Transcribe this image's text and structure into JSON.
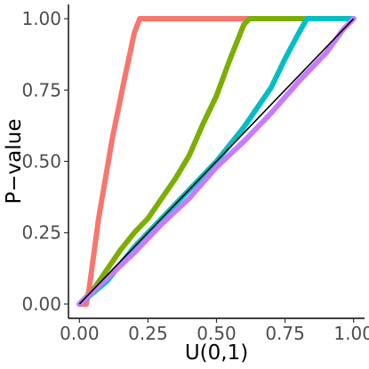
{
  "chart_data": {
    "type": "scatter",
    "title": "",
    "xlabel": "U(0,1)",
    "ylabel": "P−value",
    "xlim": [
      -0.04,
      1.04
    ],
    "ylim": [
      -0.05,
      1.05
    ],
    "xticks": [
      0.0,
      0.25,
      0.5,
      0.75,
      1.0
    ],
    "xtick_labels": [
      "0.00",
      "0.25",
      "0.50",
      "0.75",
      "1.00"
    ],
    "yticks": [
      0.0,
      0.25,
      0.5,
      0.75,
      1.0
    ],
    "ytick_labels": [
      "0.00",
      "0.25",
      "0.50",
      "0.75",
      "1.00"
    ],
    "grid": false,
    "legend": "none",
    "reference_line": {
      "from": [
        0,
        0
      ],
      "to": [
        1,
        1
      ],
      "color": "#000000"
    },
    "series": [
      {
        "color": "#F8766D",
        "points": [
          [
            0.0,
            0.0
          ],
          [
            0.025,
            0.0
          ],
          [
            0.035,
            0.05
          ],
          [
            0.07,
            0.3
          ],
          [
            0.12,
            0.58
          ],
          [
            0.16,
            0.77
          ],
          [
            0.2,
            0.95
          ],
          [
            0.22,
            1.0
          ],
          [
            1.0,
            1.0
          ]
        ]
      },
      {
        "color": "#7CAE00",
        "points": [
          [
            0.0,
            0.0
          ],
          [
            0.05,
            0.05
          ],
          [
            0.1,
            0.12
          ],
          [
            0.15,
            0.19
          ],
          [
            0.2,
            0.25
          ],
          [
            0.25,
            0.3
          ],
          [
            0.3,
            0.37
          ],
          [
            0.35,
            0.44
          ],
          [
            0.4,
            0.52
          ],
          [
            0.45,
            0.63
          ],
          [
            0.5,
            0.73
          ],
          [
            0.55,
            0.86
          ],
          [
            0.6,
            0.98
          ],
          [
            0.62,
            1.0
          ],
          [
            1.0,
            1.0
          ]
        ]
      },
      {
        "color": "#00BFC4",
        "points": [
          [
            0.0,
            0.0
          ],
          [
            0.1,
            0.08
          ],
          [
            0.2,
            0.2
          ],
          [
            0.3,
            0.3
          ],
          [
            0.4,
            0.4
          ],
          [
            0.5,
            0.5
          ],
          [
            0.6,
            0.62
          ],
          [
            0.7,
            0.76
          ],
          [
            0.75,
            0.86
          ],
          [
            0.8,
            0.95
          ],
          [
            0.83,
            1.0
          ],
          [
            1.0,
            1.0
          ]
        ]
      },
      {
        "color": "#C77CFF",
        "points": [
          [
            0.0,
            0.0
          ],
          [
            0.1,
            0.09
          ],
          [
            0.2,
            0.18
          ],
          [
            0.3,
            0.28
          ],
          [
            0.4,
            0.37
          ],
          [
            0.5,
            0.48
          ],
          [
            0.6,
            0.57
          ],
          [
            0.7,
            0.67
          ],
          [
            0.8,
            0.78
          ],
          [
            0.9,
            0.88
          ],
          [
            0.96,
            0.96
          ],
          [
            1.0,
            1.0
          ]
        ]
      }
    ]
  }
}
